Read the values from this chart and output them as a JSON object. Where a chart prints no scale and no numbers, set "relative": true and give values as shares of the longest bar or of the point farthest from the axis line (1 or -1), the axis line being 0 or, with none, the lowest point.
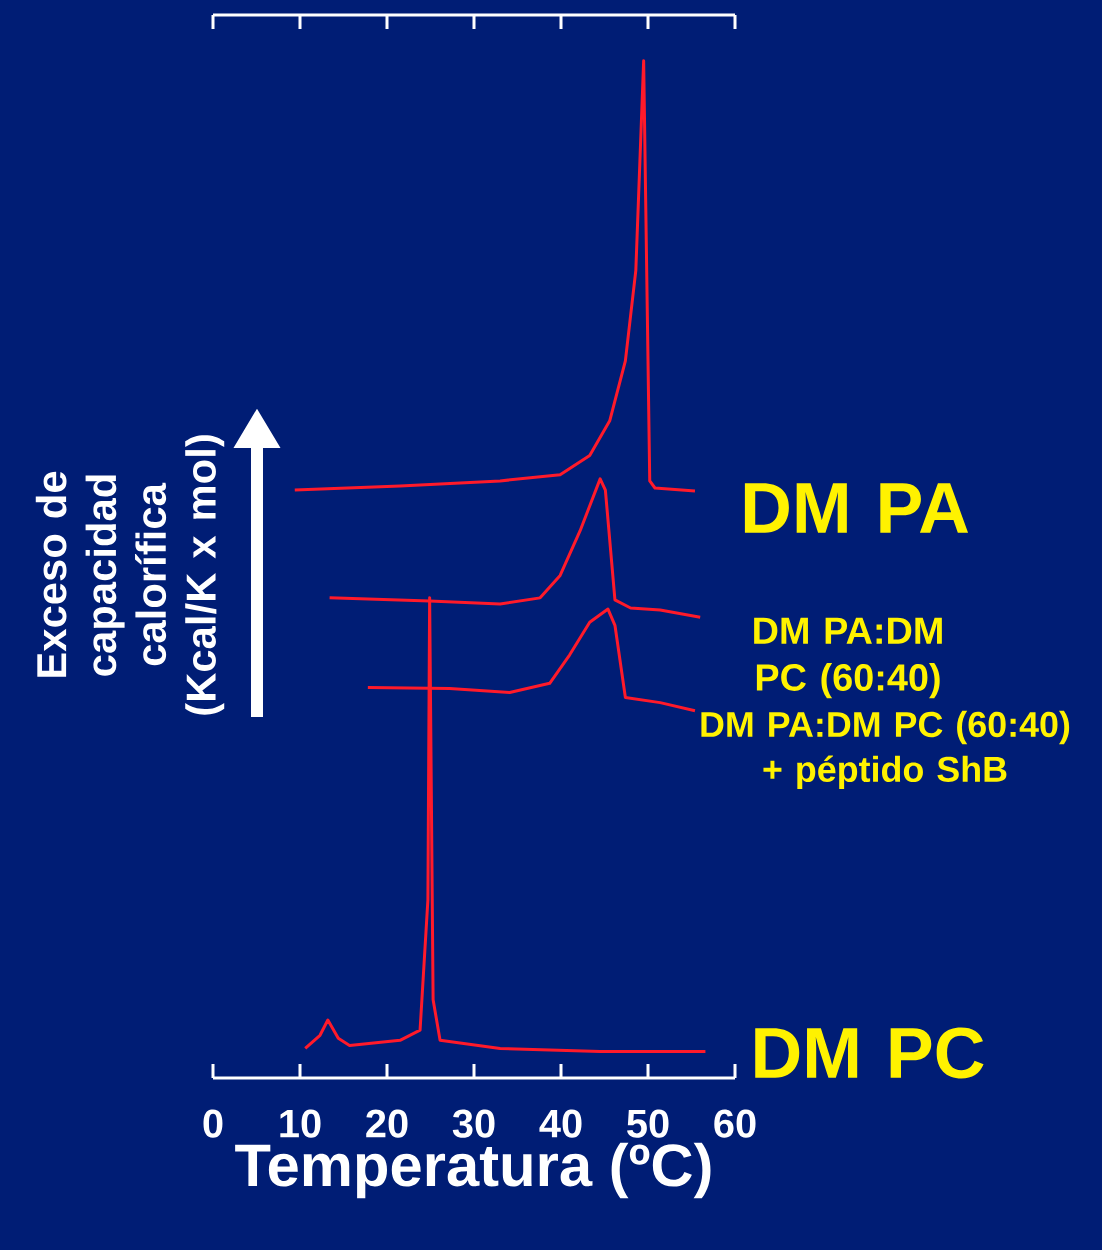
{
  "chart_data": {
    "type": "line",
    "relative": true,
    "xlabel": "Temperatura (ºC)",
    "ylabel": "Exceso de capacidad calorífica (Kcal/K x mol)",
    "xlim": [
      0,
      60
    ],
    "xticks": [
      0,
      10,
      20,
      30,
      40,
      50,
      60
    ],
    "tick_labels": "x",
    "marker": "none",
    "series": [
      {
        "name": "DM PA",
        "color": "#ff1a2a",
        "x": [
          9.4,
          21.5,
          33,
          39.9,
          43.3,
          45.6,
          47.4,
          48.6,
          49.5,
          50.2,
          50.8,
          55.4
        ],
        "values": [
          0.578,
          0.582,
          0.587,
          0.593,
          0.612,
          0.646,
          0.705,
          0.794,
          1.0,
          0.587,
          0.58,
          0.577
        ]
      },
      {
        "name": "DM PA:DM PC (60:40)",
        "color": "#ff1a2a",
        "x": [
          13.4,
          24.9,
          33,
          37.6,
          39.9,
          42.2,
          44.5,
          45.1,
          46.2,
          48,
          51.4,
          56
        ],
        "values": [
          0.472,
          0.469,
          0.466,
          0.472,
          0.494,
          0.538,
          0.589,
          0.578,
          0.47,
          0.462,
          0.46,
          0.453
        ]
      },
      {
        "name": "DM PA:DM PC (60:40) + péptido ShB",
        "color": "#ff1a2a",
        "x": [
          17.8,
          27.2,
          34.1,
          38.7,
          41,
          43.3,
          45.4,
          46.2,
          47.4,
          51.4,
          55.4
        ],
        "values": [
          0.384,
          0.383,
          0.379,
          0.388,
          0.416,
          0.448,
          0.461,
          0.445,
          0.374,
          0.369,
          0.361
        ]
      },
      {
        "name": "DM PC",
        "color": "#ff1a2a",
        "x": [
          10.6,
          12.3,
          13.2,
          14.4,
          15.7,
          21.5,
          23.8,
          24.7,
          24.9,
          25.3,
          26.1,
          33,
          44.5,
          56.6
        ],
        "values": [
          0.029,
          0.042,
          0.057,
          0.039,
          0.032,
          0.037,
          0.047,
          0.175,
          0.472,
          0.077,
          0.037,
          0.029,
          0.026,
          0.026
        ]
      }
    ]
  }
}
